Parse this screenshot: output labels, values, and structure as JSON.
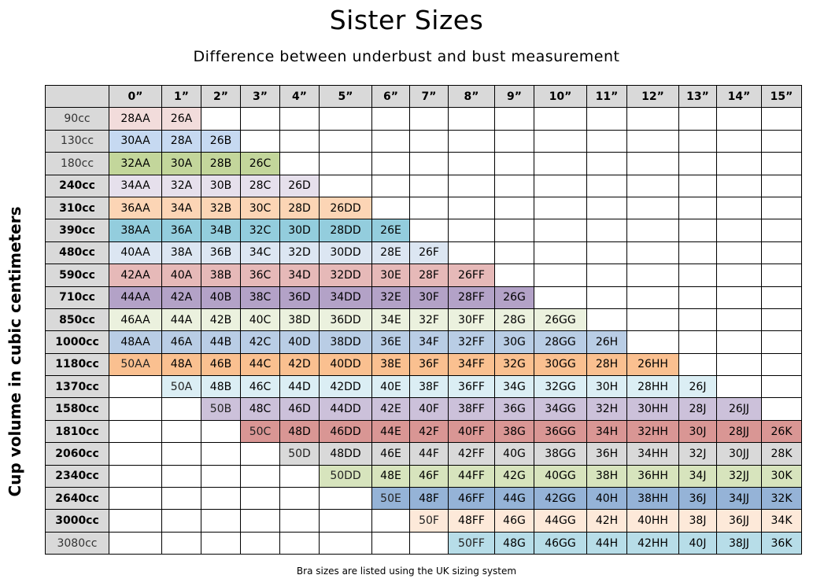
{
  "title": "Sister Sizes",
  "subtitle": "Difference between underbust and bust measurement",
  "y_axis_label": "Cup volume in cubic centimeters",
  "footer": "Bra sizes are listed using the UK sizing system",
  "chart_data": {
    "type": "table",
    "title": "Sister Sizes",
    "xlabel": "Difference between underbust and bust measurement",
    "ylabel": "Cup volume in cubic centimeters",
    "corner": "",
    "columns": [
      "0”",
      "1”",
      "2”",
      "3”",
      "4”",
      "5”",
      "6”",
      "7”",
      "8”",
      "9”",
      "10”",
      "11”",
      "12”",
      "13”",
      "14”",
      "15”"
    ],
    "header_color": "#d9d9d9",
    "rows": [
      {
        "label": "90cc",
        "color": "#f2dcdb",
        "light": true,
        "cells": [
          "28AA",
          "26A",
          "",
          "",
          "",
          "",
          "",
          "",
          "",
          "",
          "",
          "",
          "",
          "",
          "",
          ""
        ]
      },
      {
        "label": "130cc",
        "color": "#c6d9f1",
        "light": true,
        "cells": [
          "30AA",
          "28A",
          "26B",
          "",
          "",
          "",
          "",
          "",
          "",
          "",
          "",
          "",
          "",
          "",
          "",
          ""
        ]
      },
      {
        "label": "180cc",
        "color": "#c3d69b",
        "light": true,
        "cells": [
          "32AA",
          "30A",
          "28B",
          "26C",
          "",
          "",
          "",
          "",
          "",
          "",
          "",
          "",
          "",
          "",
          "",
          ""
        ]
      },
      {
        "label": "240cc",
        "color": "#e6e0ec",
        "cells": [
          "34AA",
          "32A",
          "30B",
          "28C",
          "26D",
          "",
          "",
          "",
          "",
          "",
          "",
          "",
          "",
          "",
          "",
          ""
        ]
      },
      {
        "label": "310cc",
        "color": "#fcd5b5",
        "cells": [
          "36AA",
          "34A",
          "32B",
          "30C",
          "28D",
          "26DD",
          "",
          "",
          "",
          "",
          "",
          "",
          "",
          "",
          "",
          ""
        ]
      },
      {
        "label": "390cc",
        "color": "#93cddd",
        "cells": [
          "38AA",
          "36A",
          "34B",
          "32C",
          "30D",
          "28DD",
          "26E",
          "",
          "",
          "",
          "",
          "",
          "",
          "",
          "",
          ""
        ]
      },
      {
        "label": "480cc",
        "color": "#dce6f2",
        "cells": [
          "40AA",
          "38A",
          "36B",
          "34C",
          "32D",
          "30DD",
          "28E",
          "26F",
          "",
          "",
          "",
          "",
          "",
          "",
          "",
          ""
        ]
      },
      {
        "label": "590cc",
        "color": "#e6b9b8",
        "cells": [
          "42AA",
          "40A",
          "38B",
          "36C",
          "34D",
          "32DD",
          "30E",
          "28F",
          "26FF",
          "",
          "",
          "",
          "",
          "",
          "",
          ""
        ]
      },
      {
        "label": "710cc",
        "color": "#b3a2c7",
        "cells": [
          "44AA",
          "42A",
          "40B",
          "38C",
          "36D",
          "34DD",
          "32E",
          "30F",
          "28FF",
          "26G",
          "",
          "",
          "",
          "",
          "",
          ""
        ]
      },
      {
        "label": "850cc",
        "color": "#ebf1de",
        "cells": [
          "46AA",
          "44A",
          "42B",
          "40C",
          "38D",
          "36DD",
          "34E",
          "32F",
          "30FF",
          "28G",
          "26GG",
          "",
          "",
          "",
          "",
          ""
        ]
      },
      {
        "label": "1000cc",
        "color": "#b9cde5",
        "cells": [
          "48AA",
          "46A",
          "44B",
          "42C",
          "40D",
          "38DD",
          "36E",
          "34F",
          "32FF",
          "30G",
          "28GG",
          "26H",
          "",
          "",
          "",
          ""
        ]
      },
      {
        "label": "1180cc",
        "color": "#fac090",
        "cells": [
          "50AA",
          "48A",
          "46B",
          "44C",
          "42D",
          "40DD",
          "38E",
          "36F",
          "34FF",
          "32G",
          "30GG",
          "28H",
          "26HH",
          "",
          "",
          ""
        ]
      },
      {
        "label": "1370cc",
        "color": "#dbeef4",
        "cells": [
          "",
          "50A",
          "48B",
          "46C",
          "44D",
          "42DD",
          "40E",
          "38F",
          "36FF",
          "34G",
          "32GG",
          "30H",
          "28HH",
          "26J",
          "",
          ""
        ]
      },
      {
        "label": "1580cc",
        "color": "#ccc1da",
        "cells": [
          "",
          "",
          "50B",
          "48C",
          "46D",
          "44DD",
          "42E",
          "40F",
          "38FF",
          "36G",
          "34GG",
          "32H",
          "30HH",
          "28J",
          "26JJ",
          ""
        ]
      },
      {
        "label": "1810cc",
        "color": "#d99694",
        "cells": [
          "",
          "",
          "",
          "50C",
          "48D",
          "46DD",
          "44E",
          "42F",
          "40FF",
          "38G",
          "36GG",
          "34H",
          "32HH",
          "30J",
          "28JJ",
          "26K"
        ]
      },
      {
        "label": "2060cc",
        "color": "#d9d9d9",
        "cells": [
          "",
          "",
          "",
          "",
          "50D",
          "48DD",
          "46E",
          "44F",
          "42FF",
          "40G",
          "38GG",
          "36H",
          "34HH",
          "32J",
          "30JJ",
          "28K"
        ]
      },
      {
        "label": "2340cc",
        "color": "#d7e4bd",
        "cells": [
          "",
          "",
          "",
          "",
          "",
          "50DD",
          "48E",
          "46F",
          "44FF",
          "42G",
          "40GG",
          "38H",
          "36HH",
          "34J",
          "32JJ",
          "30K"
        ]
      },
      {
        "label": "2640cc",
        "color": "#95b3d7",
        "cells": [
          "",
          "",
          "",
          "",
          "",
          "",
          "50E",
          "48F",
          "46FF",
          "44G",
          "42GG",
          "40H",
          "38HH",
          "36J",
          "34JJ",
          "32K"
        ]
      },
      {
        "label": "3000cc",
        "color": "#fde9d9",
        "cells": [
          "",
          "",
          "",
          "",
          "",
          "",
          "",
          "50F",
          "48FF",
          "46G",
          "44GG",
          "42H",
          "40HH",
          "38J",
          "36JJ",
          "34K"
        ]
      },
      {
        "label": "3080cc",
        "color": "#b7dde8",
        "light": true,
        "cells": [
          "",
          "",
          "",
          "",
          "",
          "",
          "",
          "",
          "50FF",
          "48G",
          "46GG",
          "44H",
          "42HH",
          "40J",
          "38JJ",
          "36K"
        ]
      }
    ]
  }
}
